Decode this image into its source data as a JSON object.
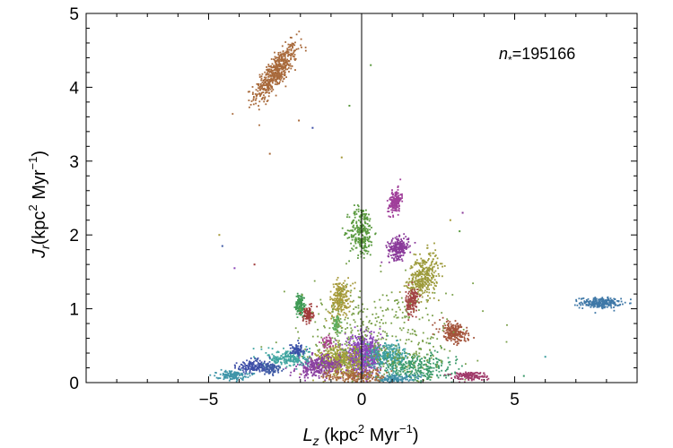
{
  "chart_data": {
    "type": "scatter",
    "xlim": [
      -9,
      9
    ],
    "ylim": [
      0,
      5
    ],
    "x_ticks": [
      {
        "value": -5,
        "label": "−5"
      },
      {
        "value": 0,
        "label": "0"
      },
      {
        "value": 5,
        "label": "5"
      }
    ],
    "y_ticks": [
      {
        "value": 0,
        "label": "0"
      },
      {
        "value": 1,
        "label": "1"
      },
      {
        "value": 2,
        "label": "2"
      },
      {
        "value": 3,
        "label": "3"
      },
      {
        "value": 4,
        "label": "4"
      },
      {
        "value": 5,
        "label": "5"
      }
    ],
    "xlabel": {
      "var": "L",
      "sub": "z",
      "unit_pre": " (kpc",
      "sup1": "2",
      "unit_mid": " Myr",
      "sup2": "−1",
      "unit_post": ")"
    },
    "ylabel": {
      "var": "J",
      "sub": "r",
      "unit_pre": "(kpc",
      "sup1": "2",
      "unit_mid": " Myr",
      "sup2": "−1",
      "unit_post": ")"
    },
    "annotation": {
      "var": "n",
      "sub": "*",
      "text": "=195166"
    },
    "vertical_line_x": 0,
    "grid": false,
    "clusters": [
      {
        "x": -2.8,
        "y": 4.2,
        "sx": 0.35,
        "sy": 0.19,
        "rho": 0.8,
        "n": 520,
        "color": "#a8693a"
      },
      {
        "x": 7.8,
        "y": 1.08,
        "sx": 0.33,
        "sy": 0.035,
        "rho": 0.0,
        "n": 230,
        "color": "#3f78a7"
      },
      {
        "x": 1.1,
        "y": 2.45,
        "sx": 0.1,
        "sy": 0.08,
        "rho": 0.3,
        "n": 170,
        "color": "#a03f9a"
      },
      {
        "x": 0.0,
        "y": 2.05,
        "sx": 0.2,
        "sy": 0.17,
        "rho": 0.0,
        "n": 260,
        "color": "#5a9a3f"
      },
      {
        "x": 1.2,
        "y": 1.82,
        "sx": 0.17,
        "sy": 0.07,
        "rho": 0.2,
        "n": 230,
        "color": "#8a3a9a"
      },
      {
        "x": 2.0,
        "y": 1.43,
        "sx": 0.25,
        "sy": 0.16,
        "rho": 0.35,
        "n": 360,
        "color": "#9c9a3a"
      },
      {
        "x": 1.65,
        "y": 1.1,
        "sx": 0.1,
        "sy": 0.09,
        "rho": 0.2,
        "n": 160,
        "color": "#a34545"
      },
      {
        "x": -0.7,
        "y": 1.13,
        "sx": 0.17,
        "sy": 0.13,
        "rho": 0.2,
        "n": 230,
        "color": "#a69a3a"
      },
      {
        "x": -2.0,
        "y": 1.05,
        "sx": 0.08,
        "sy": 0.08,
        "rho": 0.0,
        "n": 130,
        "color": "#3f9a55"
      },
      {
        "x": -1.75,
        "y": 0.92,
        "sx": 0.08,
        "sy": 0.05,
        "rho": 0.0,
        "n": 100,
        "color": "#a03a3a"
      },
      {
        "x": -0.8,
        "y": 0.78,
        "sx": 0.06,
        "sy": 0.06,
        "rho": 0.0,
        "n": 70,
        "color": "#5fae5f"
      },
      {
        "x": 3.0,
        "y": 0.68,
        "sx": 0.22,
        "sy": 0.07,
        "rho": -0.4,
        "n": 230,
        "color": "#a3533a"
      },
      {
        "x": 0.05,
        "y": 0.36,
        "sx": 0.3,
        "sy": 0.13,
        "rho": 0.0,
        "n": 700,
        "color": "#8a47b8"
      },
      {
        "x": -0.75,
        "y": 0.3,
        "sx": 0.35,
        "sy": 0.1,
        "rho": 0.1,
        "n": 400,
        "color": "#a3a03a"
      },
      {
        "x": -1.4,
        "y": 0.22,
        "sx": 0.35,
        "sy": 0.07,
        "rho": 0.2,
        "n": 300,
        "color": "#8a3fa0"
      },
      {
        "x": 0.9,
        "y": 0.36,
        "sx": 0.35,
        "sy": 0.09,
        "rho": -0.2,
        "n": 300,
        "color": "#3fa0a0"
      },
      {
        "x": 1.8,
        "y": 0.2,
        "sx": 0.6,
        "sy": 0.1,
        "rho": 0.0,
        "n": 320,
        "color": "#3a9a6a"
      },
      {
        "x": -2.4,
        "y": 0.33,
        "sx": 0.35,
        "sy": 0.06,
        "rho": 0.0,
        "n": 200,
        "color": "#3fa5a0"
      },
      {
        "x": -3.0,
        "y": 0.19,
        "sx": 0.2,
        "sy": 0.04,
        "rho": 0.0,
        "n": 120,
        "color": "#3f5aa5"
      },
      {
        "x": -3.6,
        "y": 0.22,
        "sx": 0.22,
        "sy": 0.05,
        "rho": 0.2,
        "n": 130,
        "color": "#3f4fa8"
      },
      {
        "x": -4.25,
        "y": 0.1,
        "sx": 0.25,
        "sy": 0.03,
        "rho": 0.0,
        "n": 130,
        "color": "#3f95a8"
      },
      {
        "x": -2.1,
        "y": 0.45,
        "sx": 0.12,
        "sy": 0.04,
        "rho": 0.0,
        "n": 70,
        "color": "#3a50a8"
      },
      {
        "x": -1.15,
        "y": 0.55,
        "sx": 0.1,
        "sy": 0.04,
        "rho": 0.0,
        "n": 50,
        "color": "#a83f8a"
      },
      {
        "x": 3.5,
        "y": 0.09,
        "sx": 0.28,
        "sy": 0.03,
        "rho": 0.0,
        "n": 150,
        "color": "#a03a6a"
      },
      {
        "x": 1.1,
        "y": 0.05,
        "sx": 0.4,
        "sy": 0.03,
        "rho": 0.0,
        "n": 130,
        "color": "#3f8fa8"
      },
      {
        "x": -0.2,
        "y": 0.08,
        "sx": 0.5,
        "sy": 0.05,
        "rho": 0.0,
        "n": 200,
        "color": "#a8693a"
      },
      {
        "x": 0.6,
        "y": 0.6,
        "sx": 1.3,
        "sy": 0.35,
        "rho": 0.0,
        "n": 420,
        "color": "#7aa04a"
      }
    ],
    "outliers": [
      {
        "x": 0.3,
        "y": 4.3,
        "color": "#5a9a3f"
      },
      {
        "x": -1.6,
        "y": 3.45,
        "color": "#3f4fa8"
      },
      {
        "x": -3.0,
        "y": 3.1,
        "color": "#a8693a"
      },
      {
        "x": -0.65,
        "y": 3.05,
        "color": "#a69a3a"
      },
      {
        "x": -4.65,
        "y": 2.0,
        "color": "#a69a3a"
      },
      {
        "x": -4.55,
        "y": 1.85,
        "color": "#3f5aa5"
      },
      {
        "x": -3.5,
        "y": 1.6,
        "color": "#a03a3a"
      },
      {
        "x": 2.9,
        "y": 2.2,
        "color": "#a69a3a"
      },
      {
        "x": 3.3,
        "y": 2.3,
        "color": "#8a3a9a"
      },
      {
        "x": 3.2,
        "y": 2.05,
        "color": "#5a9a3f"
      },
      {
        "x": -0.4,
        "y": 3.75,
        "color": "#5a9a3f"
      },
      {
        "x": 5.3,
        "y": 0.09,
        "color": "#3a9a6a"
      },
      {
        "x": 6.0,
        "y": 0.35,
        "color": "#3fa0a0"
      },
      {
        "x": -4.15,
        "y": 1.55,
        "color": "#8a47b8"
      },
      {
        "x": -2.05,
        "y": 3.55,
        "color": "#a8693a"
      }
    ]
  }
}
